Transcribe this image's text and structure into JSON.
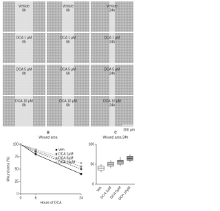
{
  "figure": {
    "cells": [
      {
        "condition": "Vehicle",
        "time": "0h"
      },
      {
        "condition": "Vehicle",
        "time": "6h"
      },
      {
        "condition": "Vehicle",
        "time": "24h"
      },
      {
        "condition": "DCA 1 μM",
        "time": "0h"
      },
      {
        "condition": "DCA 1 μM",
        "time": "6h"
      },
      {
        "condition": "DCA 1 μM",
        "time": "24h"
      },
      {
        "condition": "DCA 5 μM",
        "time": "0h"
      },
      {
        "condition": "DCA 5 μM",
        "time": "6h"
      },
      {
        "condition": "DCA 5 μM",
        "time": "24h"
      },
      {
        "condition": "DCA 10 μM",
        "time": "0h"
      },
      {
        "condition": "DCA 10 μM",
        "time": "6h"
      },
      {
        "condition": "DCA 10 μM",
        "time": "24h"
      }
    ],
    "scale_bar": "200 μm"
  },
  "chart_data": [
    {
      "type": "line",
      "panel": "B",
      "title": "Wound area",
      "x_label": "Hours of DCA",
      "y_label": "Wound area (%)",
      "x": [
        0,
        6,
        24
      ],
      "xlim": [
        0,
        24
      ],
      "xticks": [
        0,
        6,
        24
      ],
      "ylim": [
        0,
        100
      ],
      "yticks": [
        0,
        25,
        50,
        75,
        100
      ],
      "series": [
        {
          "name": "Veh",
          "color": "#111111",
          "values": [
            100,
            80,
            40
          ]
        },
        {
          "name": "DCA 1μM",
          "color": "#444444",
          "values": [
            100,
            85,
            50
          ]
        },
        {
          "name": "DCA 5μM",
          "color": "#777777",
          "values": [
            100,
            88,
            55
          ]
        },
        {
          "name": "DCA 10μM",
          "color": "#aaaaaa",
          "values": [
            100,
            90,
            62
          ]
        }
      ]
    },
    {
      "type": "box",
      "panel": "C",
      "title": "Wound area 24h",
      "categories": [
        "Veh",
        "DCA 1μM",
        "DCA 5μM",
        "DCA 10μM"
      ],
      "ylim": [
        0,
        100
      ],
      "yticks": [
        0,
        50,
        100
      ],
      "colors": [
        "#ffffff",
        "#dddddd",
        "#bbbbbb",
        "#999999"
      ],
      "min": [
        30,
        40,
        45,
        55
      ],
      "q1": [
        35,
        45,
        50,
        60
      ],
      "median": [
        40,
        50,
        56,
        65
      ],
      "q3": [
        45,
        55,
        60,
        70
      ],
      "max": [
        50,
        60,
        68,
        75
      ]
    }
  ]
}
